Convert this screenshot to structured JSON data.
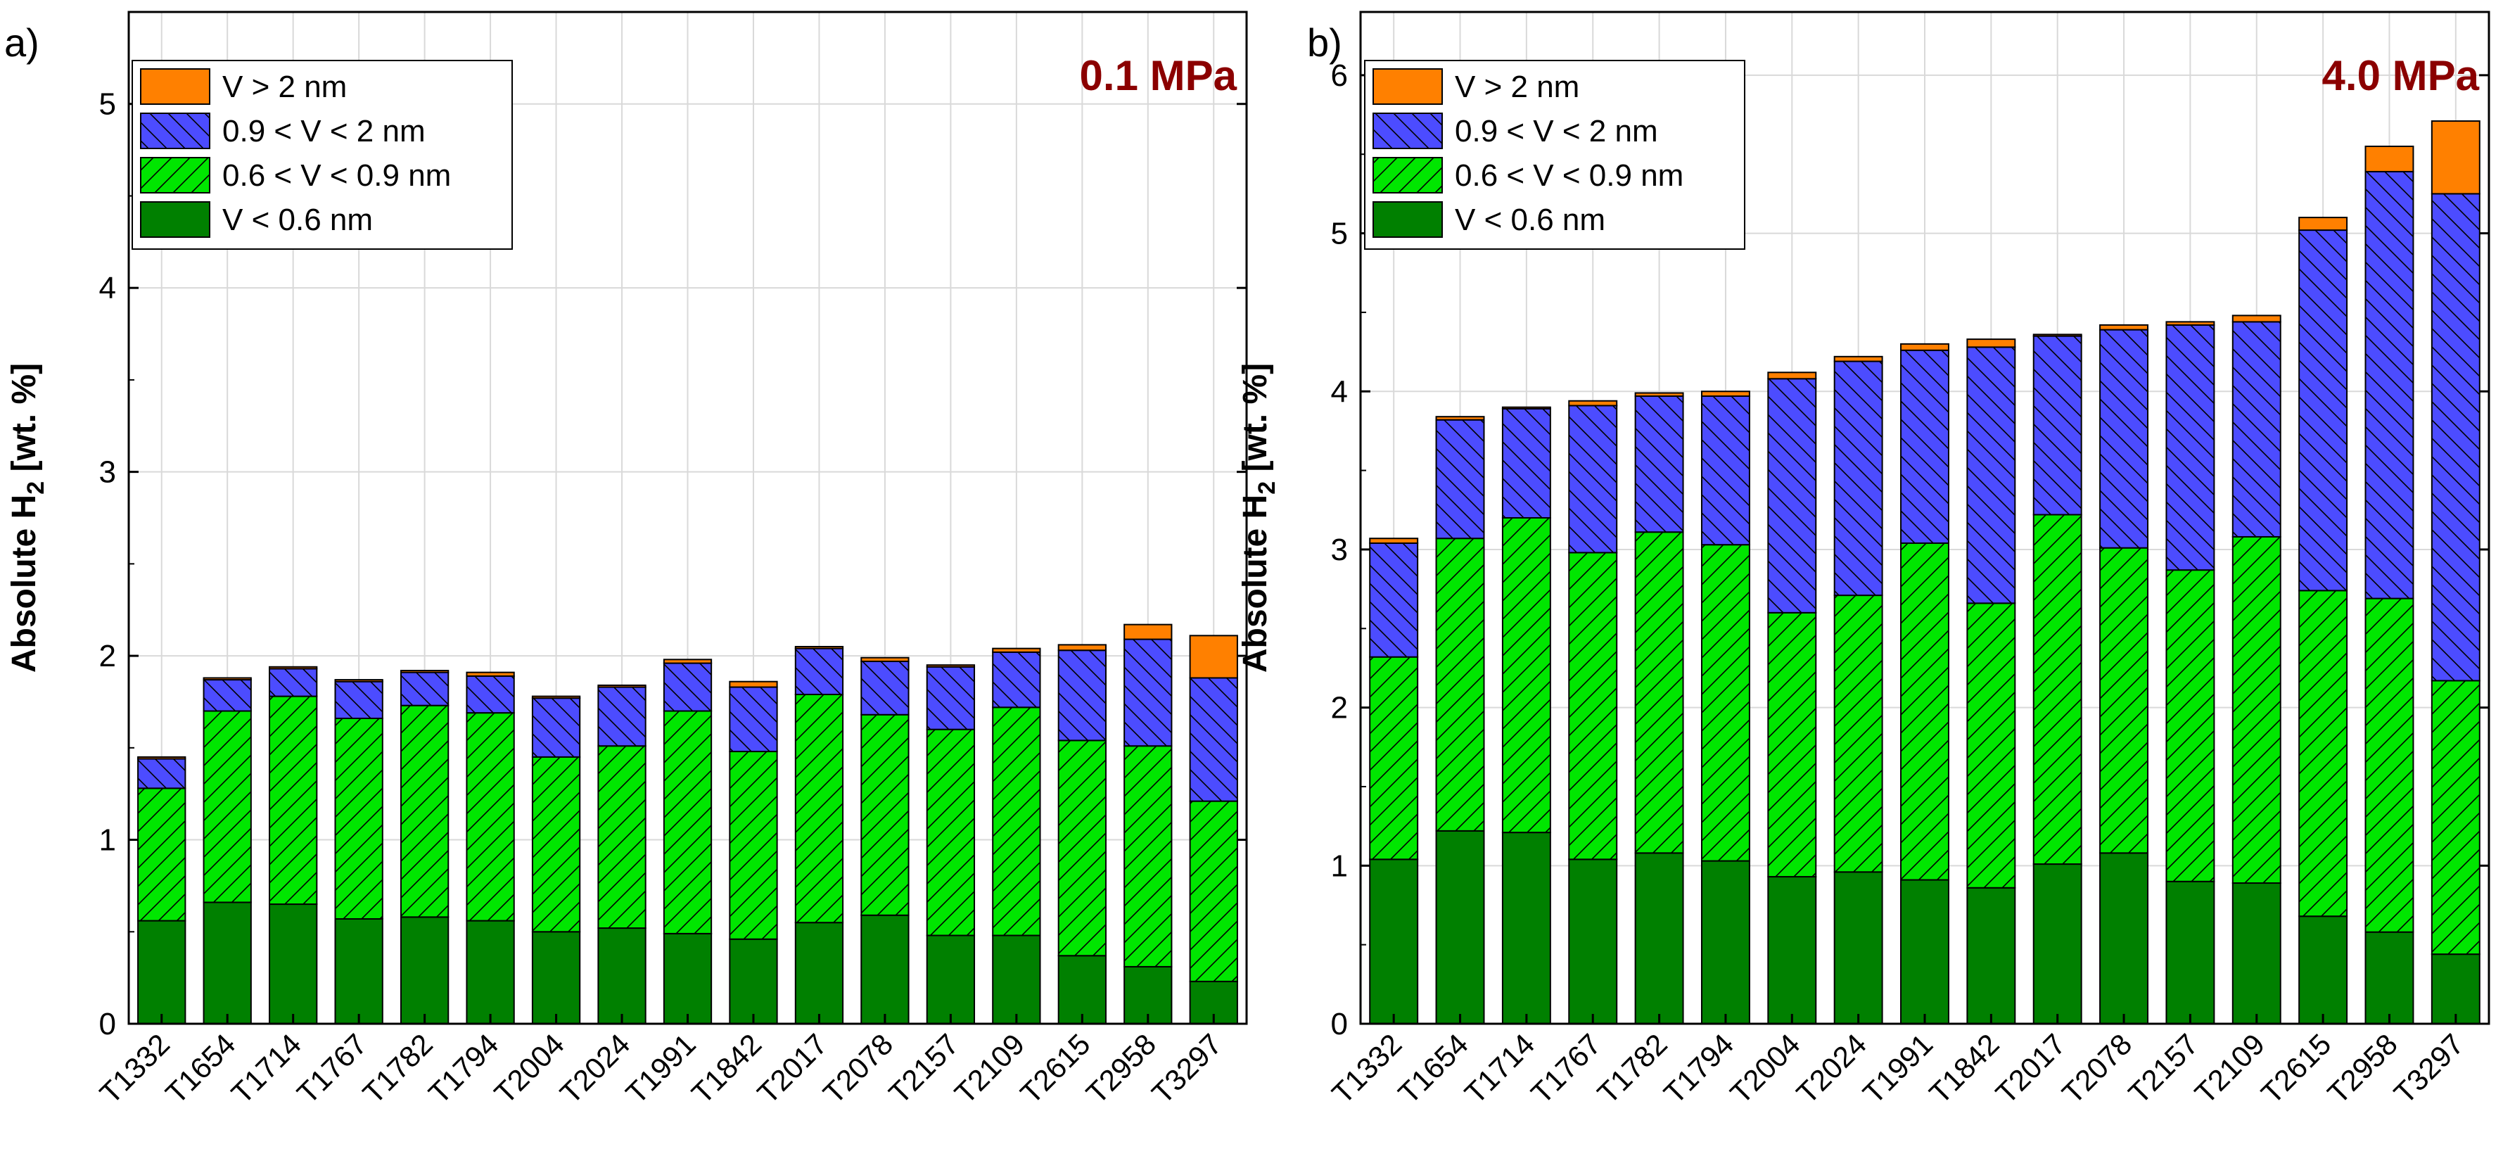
{
  "figure": {
    "panel_labels": [
      "a)",
      "b)"
    ]
  },
  "colors": {
    "gt2": "#ff8000",
    "r09_2": "#4c4cff",
    "r06_09": "#00e600",
    "lt06": "#008000",
    "pressure_label": "#8b0000",
    "grid": "#d9d9d9"
  },
  "chart_data": [
    {
      "type": "bar",
      "stacked": true,
      "panel_label": "a)",
      "annotation": "0.1 MPa",
      "ylabel": "Absolute H2 [wt. %]",
      "ylabel_main": "Absolute H",
      "ylabel_sub": "2",
      "ylabel_suffix": " [wt. %]",
      "ylim": [
        0,
        5.5
      ],
      "yticks": [
        0,
        1,
        2,
        3,
        4,
        5
      ],
      "grid": true,
      "legend_position": "top-left",
      "categories": [
        "T1332",
        "T1654",
        "T1714",
        "T1767",
        "T1782",
        "T1794",
        "T2004",
        "T2024",
        "T1991",
        "T1842",
        "T2017",
        "T2078",
        "T2157",
        "T2109",
        "T2615",
        "T2958",
        "T3297"
      ],
      "series": [
        {
          "name": "V < 0.6 nm",
          "key": "lt06",
          "values": [
            0.56,
            0.66,
            0.65,
            0.57,
            0.58,
            0.56,
            0.5,
            0.52,
            0.49,
            0.46,
            0.55,
            0.59,
            0.48,
            0.48,
            0.37,
            0.31,
            0.23
          ]
        },
        {
          "name": "0.6 < V < 0.9 nm",
          "key": "r06_09",
          "values": [
            0.72,
            1.04,
            1.13,
            1.09,
            1.15,
            1.13,
            0.95,
            0.99,
            1.21,
            1.02,
            1.24,
            1.09,
            1.12,
            1.24,
            1.17,
            1.2,
            0.98
          ]
        },
        {
          "name": "0.9 < V < 2 nm",
          "key": "r09_2",
          "values": [
            0.16,
            0.17,
            0.15,
            0.2,
            0.18,
            0.2,
            0.32,
            0.32,
            0.26,
            0.35,
            0.25,
            0.29,
            0.34,
            0.3,
            0.49,
            0.58,
            0.67
          ]
        },
        {
          "name": "V > 2 nm",
          "key": "gt2",
          "values": [
            0.01,
            0.01,
            0.01,
            0.01,
            0.01,
            0.02,
            0.01,
            0.01,
            0.02,
            0.03,
            0.01,
            0.02,
            0.01,
            0.02,
            0.03,
            0.08,
            0.23
          ]
        }
      ]
    },
    {
      "type": "bar",
      "stacked": true,
      "panel_label": "b)",
      "annotation": "4.0 MPa",
      "ylabel": "Absolute H2 [wt. %]",
      "ylabel_main": "Absolute H",
      "ylabel_sub": "2",
      "ylabel_suffix": " [wt. %]",
      "ylim": [
        0,
        6.4
      ],
      "yticks": [
        0,
        1,
        2,
        3,
        4,
        5,
        6
      ],
      "grid": true,
      "legend_position": "top-left",
      "categories": [
        "T1332",
        "T1654",
        "T1714",
        "T1767",
        "T1782",
        "T1794",
        "T2004",
        "T2024",
        "T1991",
        "T1842",
        "T2017",
        "T2078",
        "T2157",
        "T2109",
        "T2615",
        "T2958",
        "T3297"
      ],
      "series": [
        {
          "name": "V < 0.6 nm",
          "key": "lt06",
          "values": [
            1.04,
            1.22,
            1.21,
            1.04,
            1.08,
            1.03,
            0.93,
            0.96,
            0.91,
            0.86,
            1.01,
            1.08,
            0.9,
            0.89,
            0.68,
            0.58,
            0.44
          ]
        },
        {
          "name": "0.6 < V < 0.9 nm",
          "key": "r06_09",
          "values": [
            1.28,
            1.85,
            1.99,
            1.94,
            2.03,
            2.0,
            1.67,
            1.75,
            2.13,
            1.8,
            2.21,
            1.93,
            1.97,
            2.19,
            2.06,
            2.11,
            1.73
          ]
        },
        {
          "name": "0.9 < V < 2 nm",
          "key": "r09_2",
          "values": [
            0.72,
            0.75,
            0.69,
            0.93,
            0.86,
            0.94,
            1.48,
            1.48,
            1.22,
            1.62,
            1.13,
            1.38,
            1.55,
            1.36,
            2.28,
            2.7,
            3.08
          ]
        },
        {
          "name": "V > 2 nm",
          "key": "gt2",
          "values": [
            0.03,
            0.02,
            0.01,
            0.03,
            0.02,
            0.03,
            0.04,
            0.03,
            0.04,
            0.05,
            0.01,
            0.03,
            0.02,
            0.04,
            0.08,
            0.16,
            0.46
          ]
        }
      ]
    }
  ]
}
